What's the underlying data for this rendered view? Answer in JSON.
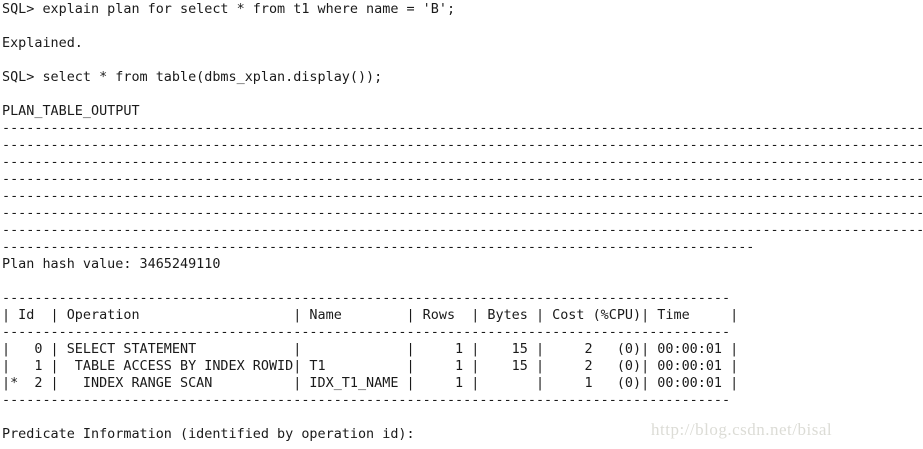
{
  "terminal": {
    "lines": [
      "SQL> explain plan for select * from t1 where name = 'B';",
      "",
      "Explained.",
      "",
      "SQL> select * from table(dbms_xplan.display());",
      "",
      "PLAN_TABLE_OUTPUT",
      "------------------------------------------------------------------------------------------------------------------------",
      "------------------------------------------------------------------------------------------------------------------------",
      "------------------------------------------------------------------------------------------------------------------------",
      "------------------------------------------------------------------------------------------------------------------------",
      "------------------------------------------------------------------------------------------------------------------------",
      "------------------------------------------------------------------------------------------------------------------------",
      "------------------------------------------------------------------------------------------------------------------------",
      "---------------------------------------------------------------------------------------------",
      "Plan hash value: 3465249110",
      "",
      "------------------------------------------------------------------------------------------",
      "| Id  | Operation                   | Name        | Rows  | Bytes | Cost (%CPU)| Time     |",
      "------------------------------------------------------------------------------------------",
      "|   0 | SELECT STATEMENT            |             |     1 |    15 |     2   (0)| 00:00:01 |",
      "|   1 |  TABLE ACCESS BY INDEX ROWID| T1          |     1 |    15 |     2   (0)| 00:00:01 |",
      "|*  2 |   INDEX RANGE SCAN          | IDX_T1_NAME |     1 |       |     1   (0)| 00:00:01 |",
      "------------------------------------------------------------------------------------------",
      "",
      "Predicate Information (identified by operation id):"
    ]
  },
  "watermark": "http://blog.csdn.net/bisal"
}
